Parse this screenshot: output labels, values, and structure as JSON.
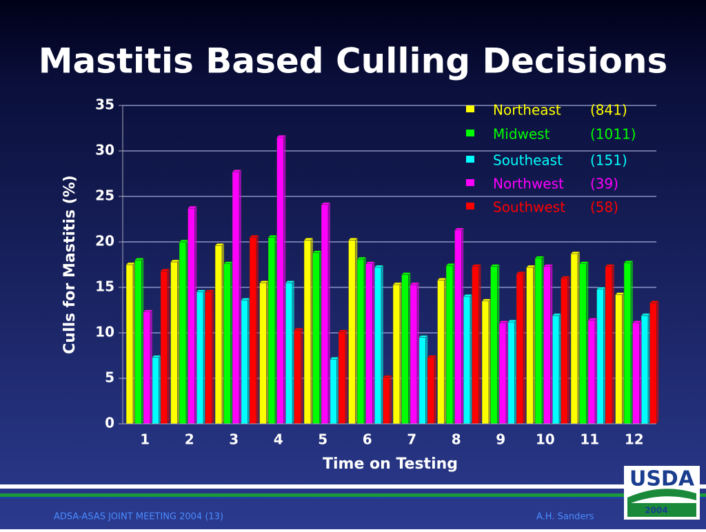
{
  "chart_data": {
    "type": "bar",
    "title": "Mastitis Based Culling Decisions",
    "x_label": "Time on Testing",
    "y_label": "Culls for Mastitis (%)",
    "categories": [
      "1",
      "2",
      "3",
      "4",
      "5",
      "6",
      "7",
      "8",
      "9",
      "10",
      "11",
      "12"
    ],
    "series": [
      {
        "name": "Northeast",
        "count_label": "(841)",
        "color": "#ffff00",
        "values": [
          17.5,
          17.8,
          19.6,
          15.5,
          20.2,
          20.2,
          15.3,
          15.8,
          13.5,
          17.2,
          18.7,
          14.2
        ]
      },
      {
        "name": "Midwest",
        "count_label": "(1011)",
        "color": "#00ff00",
        "values": [
          18,
          20,
          17.6,
          20.5,
          18.8,
          18.1,
          16.4,
          17.4,
          17.3,
          18.2,
          17.6,
          17.7
        ]
      },
      {
        "name": "Southeast",
        "count_label": "(151)",
        "color": "#00ffff",
        "values": [
          7.3,
          14.5,
          13.6,
          15.5,
          7.1,
          17.2,
          9.5,
          14,
          11.2,
          11.9,
          14.8,
          11.9
        ]
      },
      {
        "name": "Northwest",
        "count_label": "(39)",
        "color": "#ff00ff",
        "values": [
          12.3,
          23.7,
          27.7,
          31.5,
          24.1,
          17.6,
          15.3,
          21.3,
          11.1,
          17.3,
          11.4,
          11.1
        ]
      },
      {
        "name": "Southwest",
        "count_label": "(58)",
        "color": "#ff0000",
        "values": [
          16.8,
          14.5,
          20.5,
          10.3,
          10.1,
          5.1,
          7.3,
          17.3,
          16.5,
          16,
          17.3,
          13.3
        ]
      }
    ],
    "ylim": [
      0,
      35
    ],
    "yticks": [
      0,
      5,
      10,
      15,
      20,
      25,
      30,
      35
    ],
    "grid": true,
    "legend": "top-right"
  },
  "footer": {
    "left": "ADSA-ASAS JOINT MEETING 2004 (13)",
    "right": "A.H. Sanders",
    "logo": "USDA",
    "logo_year": "2004"
  }
}
